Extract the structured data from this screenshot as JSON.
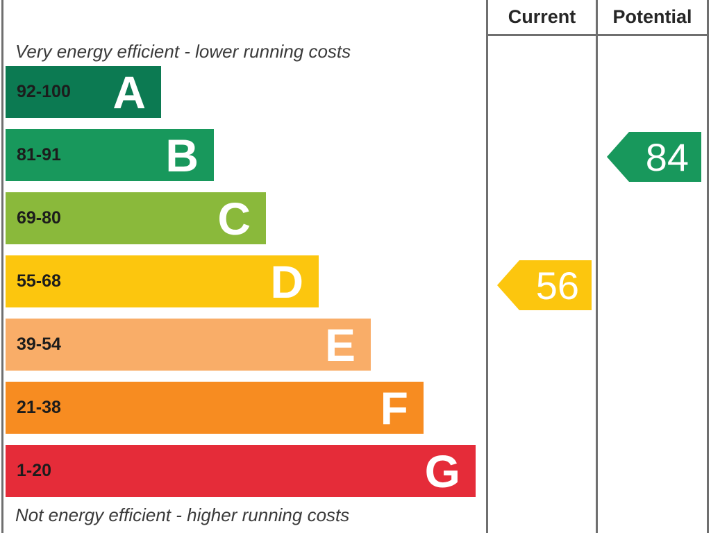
{
  "chart_data": {
    "type": "bar",
    "column_headers": {
      "current": "Current",
      "potential": "Potential"
    },
    "top_caption": "Very energy efficient - lower running costs",
    "bottom_caption": "Not energy efficient - higher running costs",
    "bands": [
      {
        "letter": "A",
        "range": "92-100",
        "min": 92,
        "max": 100,
        "color": "#0c7a52"
      },
      {
        "letter": "B",
        "range": "81-91",
        "min": 81,
        "max": 91,
        "color": "#18985c"
      },
      {
        "letter": "C",
        "range": "69-80",
        "min": 69,
        "max": 80,
        "color": "#8ab93b"
      },
      {
        "letter": "D",
        "range": "55-68",
        "min": 55,
        "max": 68,
        "color": "#fcc60e"
      },
      {
        "letter": "E",
        "range": "39-54",
        "min": 39,
        "max": 54,
        "color": "#f9ad68"
      },
      {
        "letter": "F",
        "range": "21-38",
        "min": 21,
        "max": 38,
        "color": "#f78c21"
      },
      {
        "letter": "G",
        "range": "1-20",
        "min": 1,
        "max": 20,
        "color": "#e52c39"
      }
    ],
    "current": {
      "value": 56,
      "band": "D",
      "color": "#fcc60e"
    },
    "potential": {
      "value": 84,
      "band": "B",
      "color": "#18985c"
    }
  }
}
